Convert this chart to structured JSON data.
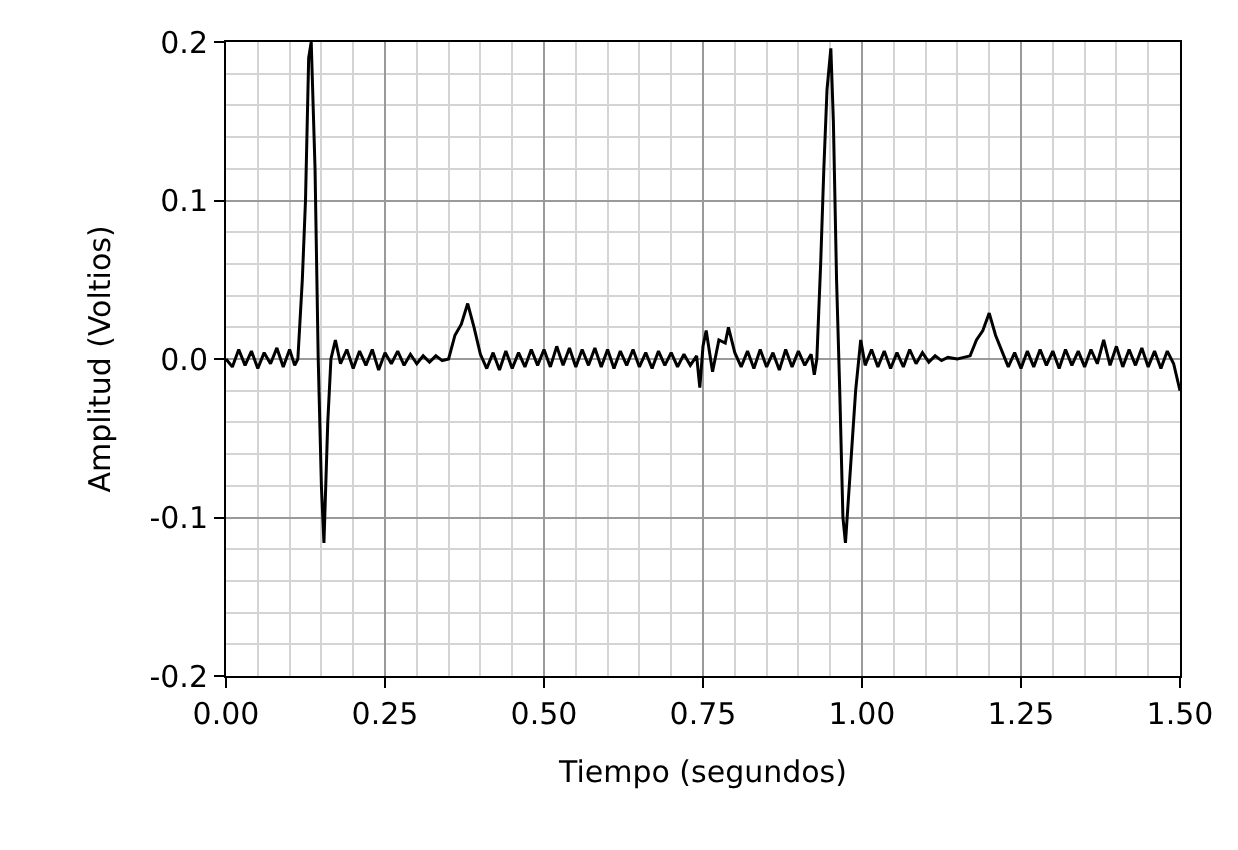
{
  "chart_data": {
    "type": "line",
    "xlabel": "Tiempo (segundos)",
    "ylabel": "Amplitud (Voltios)",
    "series": [
      {
        "color": "#000000",
        "x": [
          0.0,
          0.01,
          0.02,
          0.03,
          0.04,
          0.05,
          0.06,
          0.07,
          0.08,
          0.09,
          0.1,
          0.108,
          0.113,
          0.12,
          0.125,
          0.13,
          0.134,
          0.14,
          0.145,
          0.15,
          0.154,
          0.16,
          0.165,
          0.172,
          0.18,
          0.19,
          0.2,
          0.21,
          0.22,
          0.23,
          0.24,
          0.25,
          0.26,
          0.27,
          0.28,
          0.29,
          0.3,
          0.31,
          0.32,
          0.33,
          0.34,
          0.35,
          0.36,
          0.37,
          0.38,
          0.39,
          0.4,
          0.41,
          0.42,
          0.43,
          0.44,
          0.45,
          0.46,
          0.47,
          0.48,
          0.49,
          0.5,
          0.51,
          0.52,
          0.53,
          0.54,
          0.55,
          0.56,
          0.57,
          0.58,
          0.59,
          0.6,
          0.61,
          0.62,
          0.63,
          0.64,
          0.65,
          0.66,
          0.67,
          0.68,
          0.69,
          0.7,
          0.71,
          0.72,
          0.73,
          0.74,
          0.745,
          0.75,
          0.755,
          0.765,
          0.775,
          0.785,
          0.79,
          0.8,
          0.81,
          0.82,
          0.83,
          0.84,
          0.85,
          0.86,
          0.87,
          0.88,
          0.89,
          0.9,
          0.91,
          0.92,
          0.925,
          0.929,
          0.935,
          0.94,
          0.945,
          0.951,
          0.955,
          0.96,
          0.965,
          0.97,
          0.974,
          0.98,
          0.99,
          0.998,
          1.005,
          1.015,
          1.025,
          1.035,
          1.045,
          1.055,
          1.065,
          1.075,
          1.085,
          1.095,
          1.105,
          1.115,
          1.125,
          1.135,
          1.15,
          1.17,
          1.18,
          1.19,
          1.2,
          1.21,
          1.22,
          1.23,
          1.24,
          1.25,
          1.26,
          1.27,
          1.28,
          1.29,
          1.3,
          1.31,
          1.32,
          1.33,
          1.34,
          1.35,
          1.36,
          1.37,
          1.38,
          1.39,
          1.4,
          1.41,
          1.42,
          1.43,
          1.44,
          1.45,
          1.46,
          1.47,
          1.48,
          1.49,
          1.5
        ],
        "values": [
          0.0,
          -0.005,
          0.006,
          -0.004,
          0.005,
          -0.006,
          0.004,
          -0.003,
          0.007,
          -0.005,
          0.006,
          -0.004,
          0.0,
          0.05,
          0.1,
          0.19,
          0.2,
          0.12,
          0.0,
          -0.08,
          -0.116,
          -0.04,
          0.0,
          0.012,
          -0.003,
          0.006,
          -0.006,
          0.005,
          -0.004,
          0.006,
          -0.007,
          0.004,
          -0.003,
          0.005,
          -0.004,
          0.003,
          -0.003,
          0.002,
          -0.002,
          0.002,
          -0.001,
          0.0,
          0.015,
          0.022,
          0.035,
          0.02,
          0.003,
          -0.006,
          0.004,
          -0.007,
          0.005,
          -0.006,
          0.004,
          -0.005,
          0.006,
          -0.004,
          0.006,
          -0.005,
          0.008,
          -0.004,
          0.007,
          -0.005,
          0.006,
          -0.004,
          0.007,
          -0.005,
          0.006,
          -0.006,
          0.005,
          -0.004,
          0.006,
          -0.005,
          0.004,
          -0.006,
          0.005,
          -0.004,
          0.004,
          -0.005,
          0.003,
          -0.004,
          0.002,
          -0.018,
          0.008,
          0.018,
          -0.008,
          0.012,
          0.01,
          0.02,
          0.004,
          -0.005,
          0.005,
          -0.006,
          0.006,
          -0.005,
          0.004,
          -0.007,
          0.006,
          -0.005,
          0.005,
          -0.004,
          0.003,
          -0.01,
          0.0,
          0.06,
          0.12,
          0.17,
          0.196,
          0.15,
          0.05,
          -0.02,
          -0.1,
          -0.116,
          -0.08,
          -0.02,
          0.012,
          -0.004,
          0.006,
          -0.005,
          0.005,
          -0.006,
          0.004,
          -0.005,
          0.006,
          -0.003,
          0.004,
          -0.002,
          0.002,
          -0.001,
          0.001,
          0.0,
          0.002,
          0.012,
          0.018,
          0.029,
          0.015,
          0.005,
          -0.005,
          0.004,
          -0.006,
          0.005,
          -0.005,
          0.006,
          -0.004,
          0.005,
          -0.006,
          0.006,
          -0.004,
          0.005,
          -0.005,
          0.006,
          -0.003,
          0.012,
          -0.004,
          0.008,
          -0.005,
          0.006,
          -0.004,
          0.007,
          -0.005,
          0.005,
          -0.006,
          0.005,
          -0.003,
          -0.02
        ]
      }
    ],
    "xlim": [
      0,
      1.5
    ],
    "xticks": [
      {
        "value": 0,
        "label": "0.00"
      },
      {
        "value": 0.25,
        "label": "0.25"
      },
      {
        "value": 0.5,
        "label": "0.50"
      },
      {
        "value": 0.75,
        "label": "0.75"
      },
      {
        "value": 1.0,
        "label": "1.00"
      },
      {
        "value": 1.25,
        "label": "1.25"
      },
      {
        "value": 1.5,
        "label": "1.50"
      }
    ],
    "ylim": [
      -0.2,
      0.2
    ],
    "yticks": [
      {
        "value": -0.2,
        "label": "-0.2"
      },
      {
        "value": -0.1,
        "label": "-0.1"
      },
      {
        "value": 0,
        "label": "0.0"
      },
      {
        "value": 0.1,
        "label": "0.1"
      },
      {
        "value": 0.2,
        "label": "0.2"
      }
    ],
    "grid": true,
    "marker": "none",
    "line_style": "solid"
  }
}
